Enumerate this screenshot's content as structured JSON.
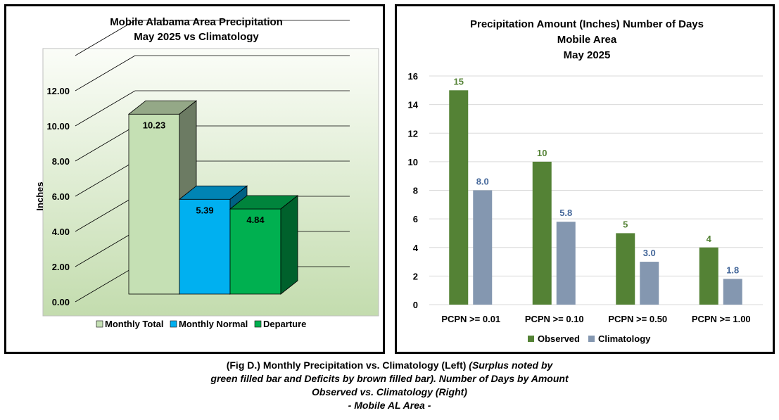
{
  "left_chart_data": {
    "type": "bar",
    "title": [
      "Mobile Alabama Area Precipitation",
      "May 2025 vs Climatology"
    ],
    "ylabel": "Inches",
    "ylim": [
      0,
      14
    ],
    "yticks": [
      "0.00",
      "2.00",
      "4.00",
      "6.00",
      "8.00",
      "10.00",
      "12.00"
    ],
    "series": [
      {
        "name": "Monthly Total",
        "value": 10.23,
        "label": "10.23",
        "color": "#c5e0b4"
      },
      {
        "name": "Monthly Normal",
        "value": 5.39,
        "label": "5.39",
        "color": "#00b0f0"
      },
      {
        "name": "Departure",
        "value": 4.84,
        "label": "4.84",
        "color": "#00b050"
      }
    ],
    "legend": "bottom",
    "grid": true,
    "three_d": true
  },
  "chart_data": {
    "type": "bar",
    "title": [
      "Precipitation Amount (Inches) Number of Days",
      "Mobile Area",
      "May 2025"
    ],
    "categories": [
      "PCPN >= 0.01",
      "PCPN >= 0.10",
      "PCPN >= 0.50",
      "PCPN >= 1.00"
    ],
    "series": [
      {
        "name": "Observed",
        "values": [
          15,
          10,
          5,
          4
        ],
        "labels": [
          "15",
          "10",
          "5",
          "4"
        ],
        "color": "#548235"
      },
      {
        "name": "Climatology",
        "values": [
          8.0,
          5.8,
          3.0,
          1.8
        ],
        "labels": [
          "8.0",
          "5.8",
          "3.0",
          "1.8"
        ],
        "color": "#8497b0"
      }
    ],
    "ylim": [
      0,
      16
    ],
    "yticks": [
      "0",
      "2",
      "4",
      "6",
      "8",
      "10",
      "12",
      "14",
      "16"
    ],
    "legend": "bottom",
    "grid": true
  },
  "caption": {
    "line1_main": "(Fig D.) Monthly Precipitation vs. Climatology (Left) ",
    "line1_italic": "(Surplus noted by",
    "line2": "green filled bar and Deficits by brown filled bar). Number of Days by Amount",
    "line3": "Observed vs. Climatology (Right)",
    "line4": "- Mobile AL Area -"
  }
}
